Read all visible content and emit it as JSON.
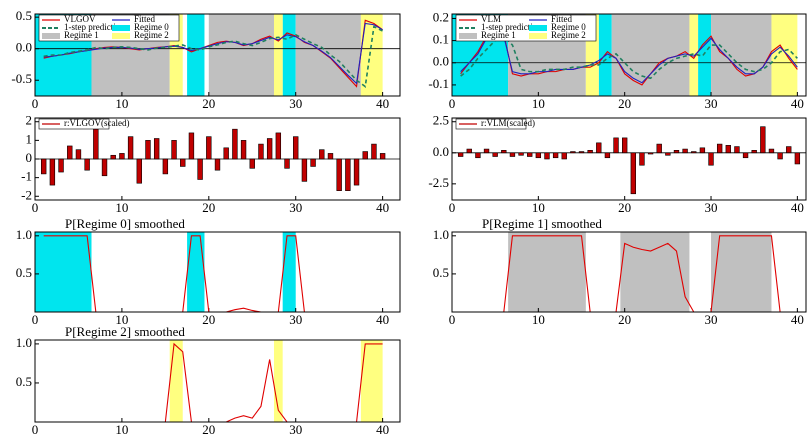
{
  "chart_data": [
    {
      "type": "line",
      "xlim": [
        0,
        42
      ],
      "xticks": [
        0,
        10,
        20,
        30,
        40
      ],
      "ylim": [
        -0.75,
        0.55
      ],
      "yticks": [
        -0.5,
        {
          "value": 0,
          "label": "0.0"
        },
        0.5
      ],
      "zero_line": true,
      "legend": "top-left",
      "x": [
        1,
        2,
        3,
        4,
        5,
        6,
        7,
        8,
        9,
        10,
        11,
        12,
        13,
        14,
        15,
        16,
        17,
        18,
        19,
        20,
        21,
        22,
        23,
        24,
        25,
        26,
        27,
        28,
        29,
        30,
        31,
        32,
        33,
        34,
        35,
        36,
        37,
        38,
        39,
        40
      ],
      "series": [
        {
          "name": "VLGOV",
          "color": "#e00000",
          "values": [
            -0.15,
            -0.12,
            -0.1,
            -0.08,
            -0.05,
            -0.03,
            0.0,
            0.02,
            0.03,
            0.02,
            0.0,
            -0.02,
            0.0,
            0.02,
            0.03,
            0.05,
            0.02,
            -0.05,
            0.0,
            0.05,
            0.1,
            0.12,
            0.1,
            0.05,
            0.08,
            0.15,
            0.2,
            0.12,
            0.25,
            0.2,
            0.1,
            0.05,
            -0.05,
            -0.15,
            -0.3,
            -0.45,
            -0.6,
            0.45,
            0.4,
            0.3
          ]
        },
        {
          "name": "Fitted",
          "color": "#2020c0",
          "values": [
            -0.13,
            -0.12,
            -0.1,
            -0.07,
            -0.05,
            -0.03,
            -0.01,
            0.01,
            0.02,
            0.02,
            0.01,
            -0.01,
            0.0,
            0.01,
            0.03,
            0.04,
            0.02,
            -0.03,
            0.0,
            0.04,
            0.08,
            0.11,
            0.1,
            0.06,
            0.08,
            0.13,
            0.18,
            0.14,
            0.22,
            0.19,
            0.11,
            0.05,
            -0.04,
            -0.14,
            -0.28,
            -0.42,
            -0.55,
            0.4,
            0.38,
            0.3
          ]
        },
        {
          "name": "1-step prediction",
          "color": "#208060",
          "dash": true,
          "values": [
            -0.12,
            -0.1,
            -0.1,
            -0.06,
            -0.04,
            -0.02,
            0.02,
            0.0,
            0.02,
            0.03,
            0.02,
            0.0,
            -0.02,
            0.01,
            0.02,
            0.04,
            0.06,
            0.0,
            -0.02,
            0.03,
            0.06,
            0.1,
            0.12,
            0.08,
            0.05,
            0.1,
            0.16,
            0.18,
            0.15,
            0.22,
            0.15,
            0.08,
            0.02,
            -0.1,
            -0.2,
            -0.35,
            -0.5,
            -0.6,
            0.35,
            0.28
          ]
        }
      ],
      "regimes": [
        {
          "name": "Regime 0",
          "color": "#00e5ee",
          "spans": [
            [
              0,
              6.5
            ],
            [
              17.5,
              19.5
            ],
            [
              28.5,
              30
            ]
          ]
        },
        {
          "name": "Regime 1",
          "color": "#c0c0c0",
          "spans": [
            [
              6.5,
              15.5
            ],
            [
              20,
              27.5
            ],
            [
              30,
              37.5
            ]
          ]
        },
        {
          "name": "Regime 2",
          "color": "#ffff80",
          "spans": [
            [
              15.5,
              17
            ],
            [
              27.5,
              28.5
            ],
            [
              37.5,
              40
            ]
          ]
        }
      ]
    },
    {
      "type": "line",
      "xlim": [
        0,
        41
      ],
      "xticks": [
        0,
        10,
        20,
        30,
        40
      ],
      "ylim": [
        -0.15,
        0.22
      ],
      "yticks": [
        -0.1,
        {
          "value": 0,
          "label": "0.0"
        },
        0.1,
        0.2
      ],
      "zero_line": true,
      "legend": "top-left",
      "x": [
        1,
        2,
        3,
        4,
        5,
        6,
        7,
        8,
        9,
        10,
        11,
        12,
        13,
        14,
        15,
        16,
        17,
        18,
        19,
        20,
        21,
        22,
        23,
        24,
        25,
        26,
        27,
        28,
        29,
        30,
        31,
        32,
        33,
        34,
        35,
        36,
        37,
        38,
        39,
        40
      ],
      "series": [
        {
          "name": "VLM",
          "color": "#e00000",
          "values": [
            -0.05,
            0.0,
            0.05,
            0.12,
            0.15,
            0.13,
            -0.05,
            -0.06,
            -0.05,
            -0.05,
            -0.04,
            -0.04,
            -0.03,
            -0.03,
            -0.02,
            -0.02,
            0.0,
            0.05,
            0.02,
            -0.05,
            -0.08,
            -0.1,
            -0.05,
            0.0,
            0.02,
            0.03,
            0.05,
            0.02,
            0.08,
            0.12,
            0.05,
            0.02,
            -0.03,
            -0.06,
            -0.05,
            -0.02,
            0.05,
            0.08,
            0.02,
            -0.03
          ]
        },
        {
          "name": "Fitted",
          "color": "#2020c0",
          "values": [
            -0.04,
            0.0,
            0.04,
            0.11,
            0.14,
            0.12,
            -0.04,
            -0.05,
            -0.05,
            -0.04,
            -0.04,
            -0.03,
            -0.03,
            -0.03,
            -0.02,
            -0.01,
            0.01,
            0.04,
            0.02,
            -0.04,
            -0.07,
            -0.09,
            -0.05,
            -0.01,
            0.02,
            0.03,
            0.04,
            0.03,
            0.07,
            0.11,
            0.06,
            0.02,
            -0.02,
            -0.05,
            -0.05,
            -0.02,
            0.04,
            0.07,
            0.03,
            -0.02
          ]
        },
        {
          "name": "1-step prediction",
          "color": "#208060",
          "dash": true,
          "values": [
            -0.06,
            -0.03,
            0.02,
            0.06,
            0.1,
            0.12,
            0.08,
            -0.03,
            -0.04,
            -0.04,
            -0.03,
            -0.03,
            -0.03,
            -0.02,
            -0.02,
            -0.01,
            -0.01,
            0.02,
            0.04,
            0.0,
            -0.04,
            -0.06,
            -0.07,
            -0.03,
            0.0,
            0.02,
            0.03,
            0.04,
            0.03,
            0.08,
            0.08,
            0.04,
            0.0,
            -0.03,
            -0.04,
            -0.03,
            0.0,
            0.05,
            0.06,
            0.02
          ]
        }
      ],
      "regimes": [
        {
          "name": "Regime 0",
          "color": "#00e5ee",
          "spans": [
            [
              0,
              6.5
            ],
            [
              17,
              18.5
            ],
            [
              28.5,
              30
            ]
          ]
        },
        {
          "name": "Regime 1",
          "color": "#c0c0c0",
          "spans": [
            [
              6.5,
              15.5
            ],
            [
              18.5,
              27.5
            ],
            [
              30,
              37
            ]
          ]
        },
        {
          "name": "Regime 2",
          "color": "#ffff80",
          "spans": [
            [
              15.5,
              17
            ],
            [
              27.5,
              28.5
            ],
            [
              37,
              40
            ]
          ]
        }
      ]
    },
    {
      "type": "bar",
      "xlim": [
        0,
        42
      ],
      "xticks": [
        0,
        10,
        20,
        30,
        40
      ],
      "ylim": [
        -2.2,
        2.2
      ],
      "yticks": [
        -2,
        -1,
        0,
        1,
        2
      ],
      "zero_line": true,
      "legend": "top-left",
      "x": [
        1,
        2,
        3,
        4,
        5,
        6,
        7,
        8,
        9,
        10,
        11,
        12,
        13,
        14,
        15,
        16,
        17,
        18,
        19,
        20,
        21,
        22,
        23,
        24,
        25,
        26,
        27,
        28,
        29,
        30,
        31,
        32,
        33,
        34,
        35,
        36,
        37,
        38,
        39,
        40
      ],
      "series": [
        {
          "name": "r:VLGOV(scaled)",
          "color": "#c00000",
          "values": [
            -0.8,
            -1.4,
            -0.7,
            0.7,
            0.5,
            -0.6,
            1.6,
            -0.9,
            0.2,
            0.3,
            1.2,
            -1.3,
            1.0,
            1.1,
            -0.8,
            1.0,
            -0.4,
            1.4,
            -1.1,
            1.2,
            -0.6,
            0.6,
            1.6,
            1.0,
            -0.5,
            0.8,
            1.1,
            1.4,
            -0.5,
            1.2,
            -1.2,
            -0.4,
            0.5,
            0.3,
            -1.7,
            -1.7,
            -1.4,
            0.4,
            0.8,
            0.3
          ]
        }
      ]
    },
    {
      "type": "bar",
      "xlim": [
        0,
        41
      ],
      "xticks": [
        0,
        10,
        20,
        30,
        40
      ],
      "ylim": [
        -3.8,
        2.8
      ],
      "yticks": [
        -2.5,
        {
          "value": 0,
          "label": "0.0"
        },
        2.5
      ],
      "zero_line": true,
      "legend": "top-left",
      "x": [
        1,
        2,
        3,
        4,
        5,
        6,
        7,
        8,
        9,
        10,
        11,
        12,
        13,
        14,
        15,
        16,
        17,
        18,
        19,
        20,
        21,
        22,
        23,
        24,
        25,
        26,
        27,
        28,
        29,
        30,
        31,
        32,
        33,
        34,
        35,
        36,
        37,
        38,
        39,
        40
      ],
      "series": [
        {
          "name": "r:VLM(scaled)",
          "color": "#c00000",
          "values": [
            -0.3,
            0.3,
            -0.4,
            0.3,
            -0.3,
            0.2,
            -0.3,
            -0.2,
            -0.3,
            -0.4,
            -0.5,
            -0.4,
            -0.5,
            0.1,
            0.1,
            0.2,
            0.8,
            -0.4,
            1.2,
            1.2,
            -3.3,
            -1.0,
            -0.1,
            0.7,
            -0.2,
            0.2,
            0.3,
            0.1,
            0.4,
            -1.0,
            0.7,
            0.6,
            0.5,
            -0.4,
            0.2,
            2.1,
            0.3,
            -0.5,
            0.5,
            -0.9
          ]
        }
      ]
    },
    {
      "type": "probability",
      "title": "P[Regime 0] smoothed",
      "xlim": [
        0,
        42
      ],
      "xticks": [
        0,
        10,
        20,
        30,
        40
      ],
      "ylim": [
        0,
        1.05
      ],
      "yticks": [
        0.5,
        {
          "value": 1,
          "label": "1.0"
        }
      ],
      "x": [
        1,
        2,
        3,
        4,
        5,
        6,
        7,
        8,
        9,
        10,
        11,
        12,
        13,
        14,
        15,
        16,
        17,
        18,
        19,
        20,
        21,
        22,
        23,
        24,
        25,
        26,
        27,
        28,
        29,
        30,
        31,
        32,
        33,
        34,
        35,
        36,
        37,
        38,
        39,
        40
      ],
      "series": [
        {
          "color": "#e00000",
          "values": [
            1,
            1,
            1,
            1,
            1,
            1,
            0,
            0,
            0,
            0,
            0,
            0,
            0,
            0,
            0,
            0,
            0,
            1,
            1,
            0,
            0,
            0,
            0.03,
            0.05,
            0.02,
            0,
            0,
            0,
            1,
            1,
            0,
            0,
            0,
            0,
            0,
            0,
            0,
            0,
            0,
            0
          ]
        }
      ],
      "regimes": [
        {
          "color": "#00e5ee",
          "spans": [
            [
              0,
              6.5
            ],
            [
              17.5,
              19.5
            ],
            [
              28.5,
              30
            ]
          ]
        }
      ]
    },
    {
      "type": "probability",
      "title": "P[Regime 1] smoothed",
      "xlim": [
        0,
        41
      ],
      "xticks": [
        0,
        10,
        20,
        30,
        40
      ],
      "ylim": [
        0,
        1.05
      ],
      "yticks": [
        0.5,
        {
          "value": 1,
          "label": "1.0"
        }
      ],
      "x": [
        1,
        2,
        3,
        4,
        5,
        6,
        7,
        8,
        9,
        10,
        11,
        12,
        13,
        14,
        15,
        16,
        17,
        18,
        19,
        20,
        21,
        22,
        23,
        24,
        25,
        26,
        27,
        28,
        29,
        30,
        31,
        32,
        33,
        34,
        35,
        36,
        37,
        38,
        39,
        40
      ],
      "series": [
        {
          "color": "#e00000",
          "values": [
            0,
            0,
            0,
            0,
            0,
            0,
            1,
            1,
            1,
            1,
            1,
            1,
            1,
            1,
            1,
            0,
            0,
            0,
            0,
            0.9,
            0.85,
            0.82,
            0.8,
            0.85,
            0.9,
            0.8,
            0.2,
            0,
            0,
            0,
            1,
            1,
            1,
            1,
            1,
            1,
            1,
            0,
            0,
            0
          ]
        }
      ],
      "regimes": [
        {
          "color": "#c0c0c0",
          "spans": [
            [
              6.5,
              15.5
            ],
            [
              19.5,
              27.5
            ],
            [
              30,
              37
            ]
          ]
        }
      ]
    },
    {
      "type": "probability",
      "title": "P[Regime 2] smoothed",
      "xlim": [
        0,
        42
      ],
      "xticks": [
        0,
        10,
        20,
        30,
        40
      ],
      "ylim": [
        0,
        1.05
      ],
      "yticks": [
        0.5,
        {
          "value": 1,
          "label": "1.0"
        }
      ],
      "x": [
        1,
        2,
        3,
        4,
        5,
        6,
        7,
        8,
        9,
        10,
        11,
        12,
        13,
        14,
        15,
        16,
        17,
        18,
        19,
        20,
        21,
        22,
        23,
        24,
        25,
        26,
        27,
        28,
        29,
        30,
        31,
        32,
        33,
        34,
        35,
        36,
        37,
        38,
        39,
        40
      ],
      "series": [
        {
          "color": "#e00000",
          "values": [
            0,
            0,
            0,
            0,
            0,
            0,
            0,
            0,
            0,
            0,
            0,
            0,
            0,
            0,
            0,
            1,
            0.9,
            0,
            0,
            0,
            0,
            0,
            0.05,
            0.08,
            0.05,
            0.2,
            0.8,
            0.15,
            0,
            0,
            0,
            0,
            0,
            0,
            0,
            0,
            0,
            1,
            1,
            1
          ]
        }
      ],
      "regimes": [
        {
          "color": "#ffff80",
          "spans": [
            [
              15.5,
              17
            ],
            [
              27.5,
              28.5
            ],
            [
              37.5,
              40
            ]
          ]
        }
      ]
    }
  ]
}
